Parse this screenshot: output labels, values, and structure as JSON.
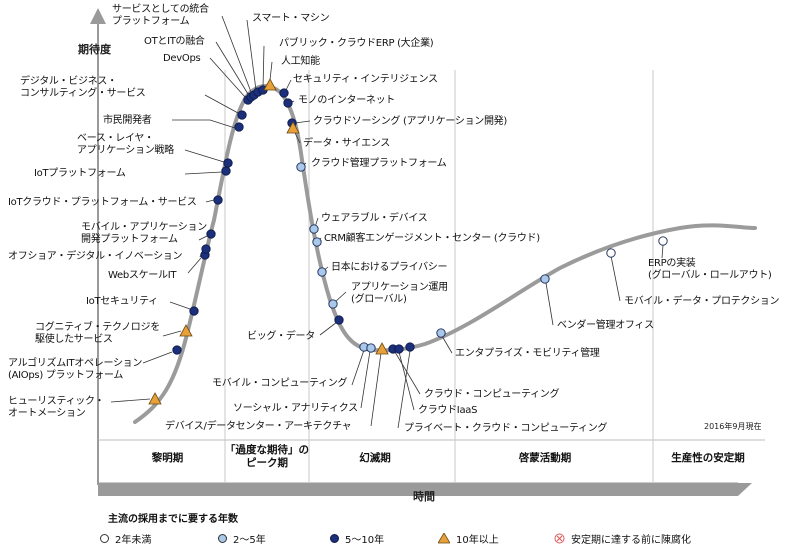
{
  "axes": {
    "y_label": "期待度",
    "x_label": "時間",
    "as_of": "2016年9月現在"
  },
  "phases": [
    {
      "label": "黎明期"
    },
    {
      "label": "「過度な期待」の\nピーク期"
    },
    {
      "label": "幻滅期"
    },
    {
      "label": "啓蒙活動期"
    },
    {
      "label": "生産性の安定期"
    }
  ],
  "legend": {
    "title": "主流の採用までに要する年数",
    "items": [
      {
        "label": "2年未満",
        "marker": "white-circle"
      },
      {
        "label": "2〜5年",
        "marker": "lightblue-circle"
      },
      {
        "label": "5〜10年",
        "marker": "navy-circle"
      },
      {
        "label": "10年以上",
        "marker": "orange-triangle"
      },
      {
        "label": "安定期に達する前に陳腐化",
        "marker": "x-circle"
      }
    ]
  },
  "colors": {
    "white": "#ffffff",
    "lightblue": "#a9c8ea",
    "navy": "#1b2f7a",
    "orange": "#e8a13a",
    "curve": "#9b9b9b",
    "obsolete": "#e05a5a"
  },
  "technologies": [
    {
      "label": "ヒューリスティック・\nオートメーション",
      "category": "orange"
    },
    {
      "label": "アルゴリズムITオペレーション\n(AIOps) プラットフォーム",
      "category": "navy"
    },
    {
      "label": "コグニティブ・テクノロジを\n駆使したサービス",
      "category": "orange"
    },
    {
      "label": "IoTセキュリティ",
      "category": "navy"
    },
    {
      "label": "WebスケールIT",
      "category": "navy"
    },
    {
      "label": "オフショア・デジタル・イノベーション",
      "category": "navy"
    },
    {
      "label": "モバイル・アプリケーション\n開発プラットフォーム",
      "category": "navy"
    },
    {
      "label": "IoTクラウド・プラットフォーム・サービス",
      "category": "navy"
    },
    {
      "label": "IoTプラットフォーム",
      "category": "navy"
    },
    {
      "label": "ベース・レイヤ・\nアプリケーション戦略",
      "category": "navy"
    },
    {
      "label": "市民開発者",
      "category": "navy"
    },
    {
      "label": "デジタル・ビジネス・\nコンサルティング・サービス",
      "category": "navy"
    },
    {
      "label": "DevOps",
      "category": "navy"
    },
    {
      "label": "OTとITの融合",
      "category": "navy"
    },
    {
      "label": "サービスとしての統合\nプラットフォーム",
      "category": "navy"
    },
    {
      "label": "スマート・マシン",
      "category": "navy"
    },
    {
      "label": "パブリック・クラウドERP (大企業)",
      "category": "navy"
    },
    {
      "label": "人工知能",
      "category": "orange"
    },
    {
      "label": "セキュリティ・インテリジェンス",
      "category": "navy"
    },
    {
      "label": "モノのインターネット",
      "category": "navy"
    },
    {
      "label": "クラウドソーシング (アプリケーション開発)",
      "category": "navy"
    },
    {
      "label": "データ・サイエンス",
      "category": "orange"
    },
    {
      "label": "クラウド管理プラットフォーム",
      "category": "lightblue"
    },
    {
      "label": "ウェアラブル・デバイス",
      "category": "lightblue"
    },
    {
      "label": "CRM顧客エンゲージメント・センター (クラウド)",
      "category": "lightblue"
    },
    {
      "label": "日本におけるプライバシー",
      "category": "lightblue"
    },
    {
      "label": "アプリケーション運用\n(グローバル)",
      "category": "lightblue"
    },
    {
      "label": "ビッグ・データ",
      "category": "navy"
    },
    {
      "label": "モバイル・コンピューティング",
      "category": "lightblue"
    },
    {
      "label": "ソーシャル・アナリティクス",
      "category": "lightblue"
    },
    {
      "label": "デバイス/データセンター・アーキテクチャ",
      "category": "orange"
    },
    {
      "label": "クラウド・コンピューティング",
      "category": "navy"
    },
    {
      "label": "クラウドIaaS",
      "category": "navy"
    },
    {
      "label": "プライベート・クラウド・コンピューティング",
      "category": "navy"
    },
    {
      "label": "エンタプライズ・モビリティ管理",
      "category": "lightblue"
    },
    {
      "label": "ベンダー管理オフィス",
      "category": "lightblue"
    },
    {
      "label": "モバイル・データ・プロテクション",
      "category": "white"
    },
    {
      "label": "ERPの実装\n(グローバル・ロールアウト)",
      "category": "white"
    }
  ]
}
